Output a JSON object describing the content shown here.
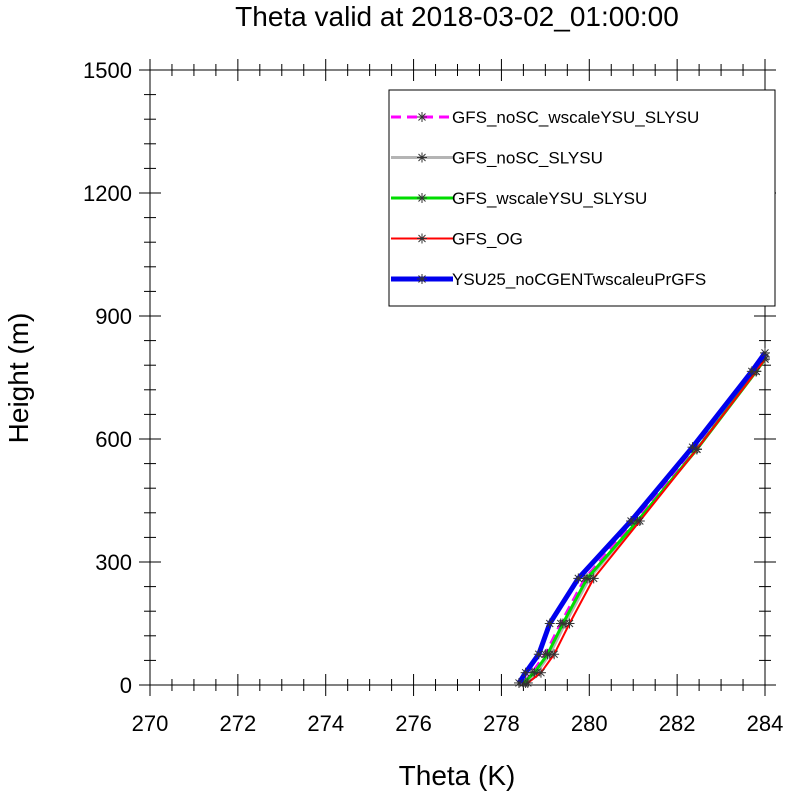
{
  "chart_data": {
    "type": "line",
    "title": "Theta valid at 2018-03-02_01:00:00",
    "xlabel": "Theta (K)",
    "ylabel": "Height (m)",
    "xlim": [
      270,
      284
    ],
    "ylim": [
      0,
      1500
    ],
    "xticks": [
      "270",
      "272",
      "274",
      "276",
      "278",
      "280",
      "282",
      "284"
    ],
    "yticks": [
      "0",
      "300",
      "600",
      "900",
      "1200",
      "1500"
    ],
    "legend_position": "top-right",
    "series": [
      {
        "name": "GFS_noSC_wscaleYSU_SLYSU",
        "color": "#ff00ff",
        "style": "dash",
        "marker": "asterisk",
        "points": [
          [
            278.5,
            5
          ],
          [
            278.7,
            30
          ],
          [
            279.0,
            75
          ],
          [
            279.35,
            150
          ],
          [
            279.9,
            260
          ],
          [
            281.05,
            400
          ],
          [
            282.4,
            575
          ],
          [
            283.75,
            765
          ],
          [
            284.0,
            800
          ]
        ]
      },
      {
        "name": "GFS_noSC_SLYSU",
        "color": "#b4b4b4",
        "style": "solid",
        "marker": "asterisk",
        "points": [
          [
            278.55,
            5
          ],
          [
            278.8,
            30
          ],
          [
            279.1,
            75
          ],
          [
            279.45,
            150
          ],
          [
            280.0,
            260
          ],
          [
            281.1,
            400
          ],
          [
            282.45,
            575
          ],
          [
            283.8,
            765
          ],
          [
            284.0,
            795
          ]
        ]
      },
      {
        "name": "GFS_wscaleYSU_SLYSU",
        "color": "#00dd00",
        "style": "solid",
        "marker": "asterisk",
        "points": [
          [
            278.5,
            5
          ],
          [
            278.75,
            30
          ],
          [
            279.05,
            75
          ],
          [
            279.4,
            150
          ],
          [
            279.95,
            260
          ],
          [
            281.1,
            400
          ],
          [
            282.45,
            575
          ],
          [
            283.8,
            765
          ],
          [
            284.0,
            795
          ]
        ]
      },
      {
        "name": "GFS_OG",
        "color": "#ff0000",
        "style": "solid",
        "marker": "asterisk",
        "points": [
          [
            278.6,
            5
          ],
          [
            278.9,
            30
          ],
          [
            279.2,
            75
          ],
          [
            279.55,
            150
          ],
          [
            280.1,
            260
          ],
          [
            281.15,
            400
          ],
          [
            282.45,
            575
          ],
          [
            283.8,
            765
          ],
          [
            284.0,
            795
          ]
        ]
      },
      {
        "name": "YSU25_noCGENTwscaleuPrGFS",
        "color": "#0000ee",
        "style": "solid",
        "marker": "asterisk",
        "points": [
          [
            278.4,
            5
          ],
          [
            278.55,
            30
          ],
          [
            278.85,
            75
          ],
          [
            279.1,
            150
          ],
          [
            279.75,
            260
          ],
          [
            280.95,
            400
          ],
          [
            282.35,
            580
          ],
          [
            283.7,
            765
          ],
          [
            284.0,
            810
          ]
        ]
      }
    ]
  }
}
